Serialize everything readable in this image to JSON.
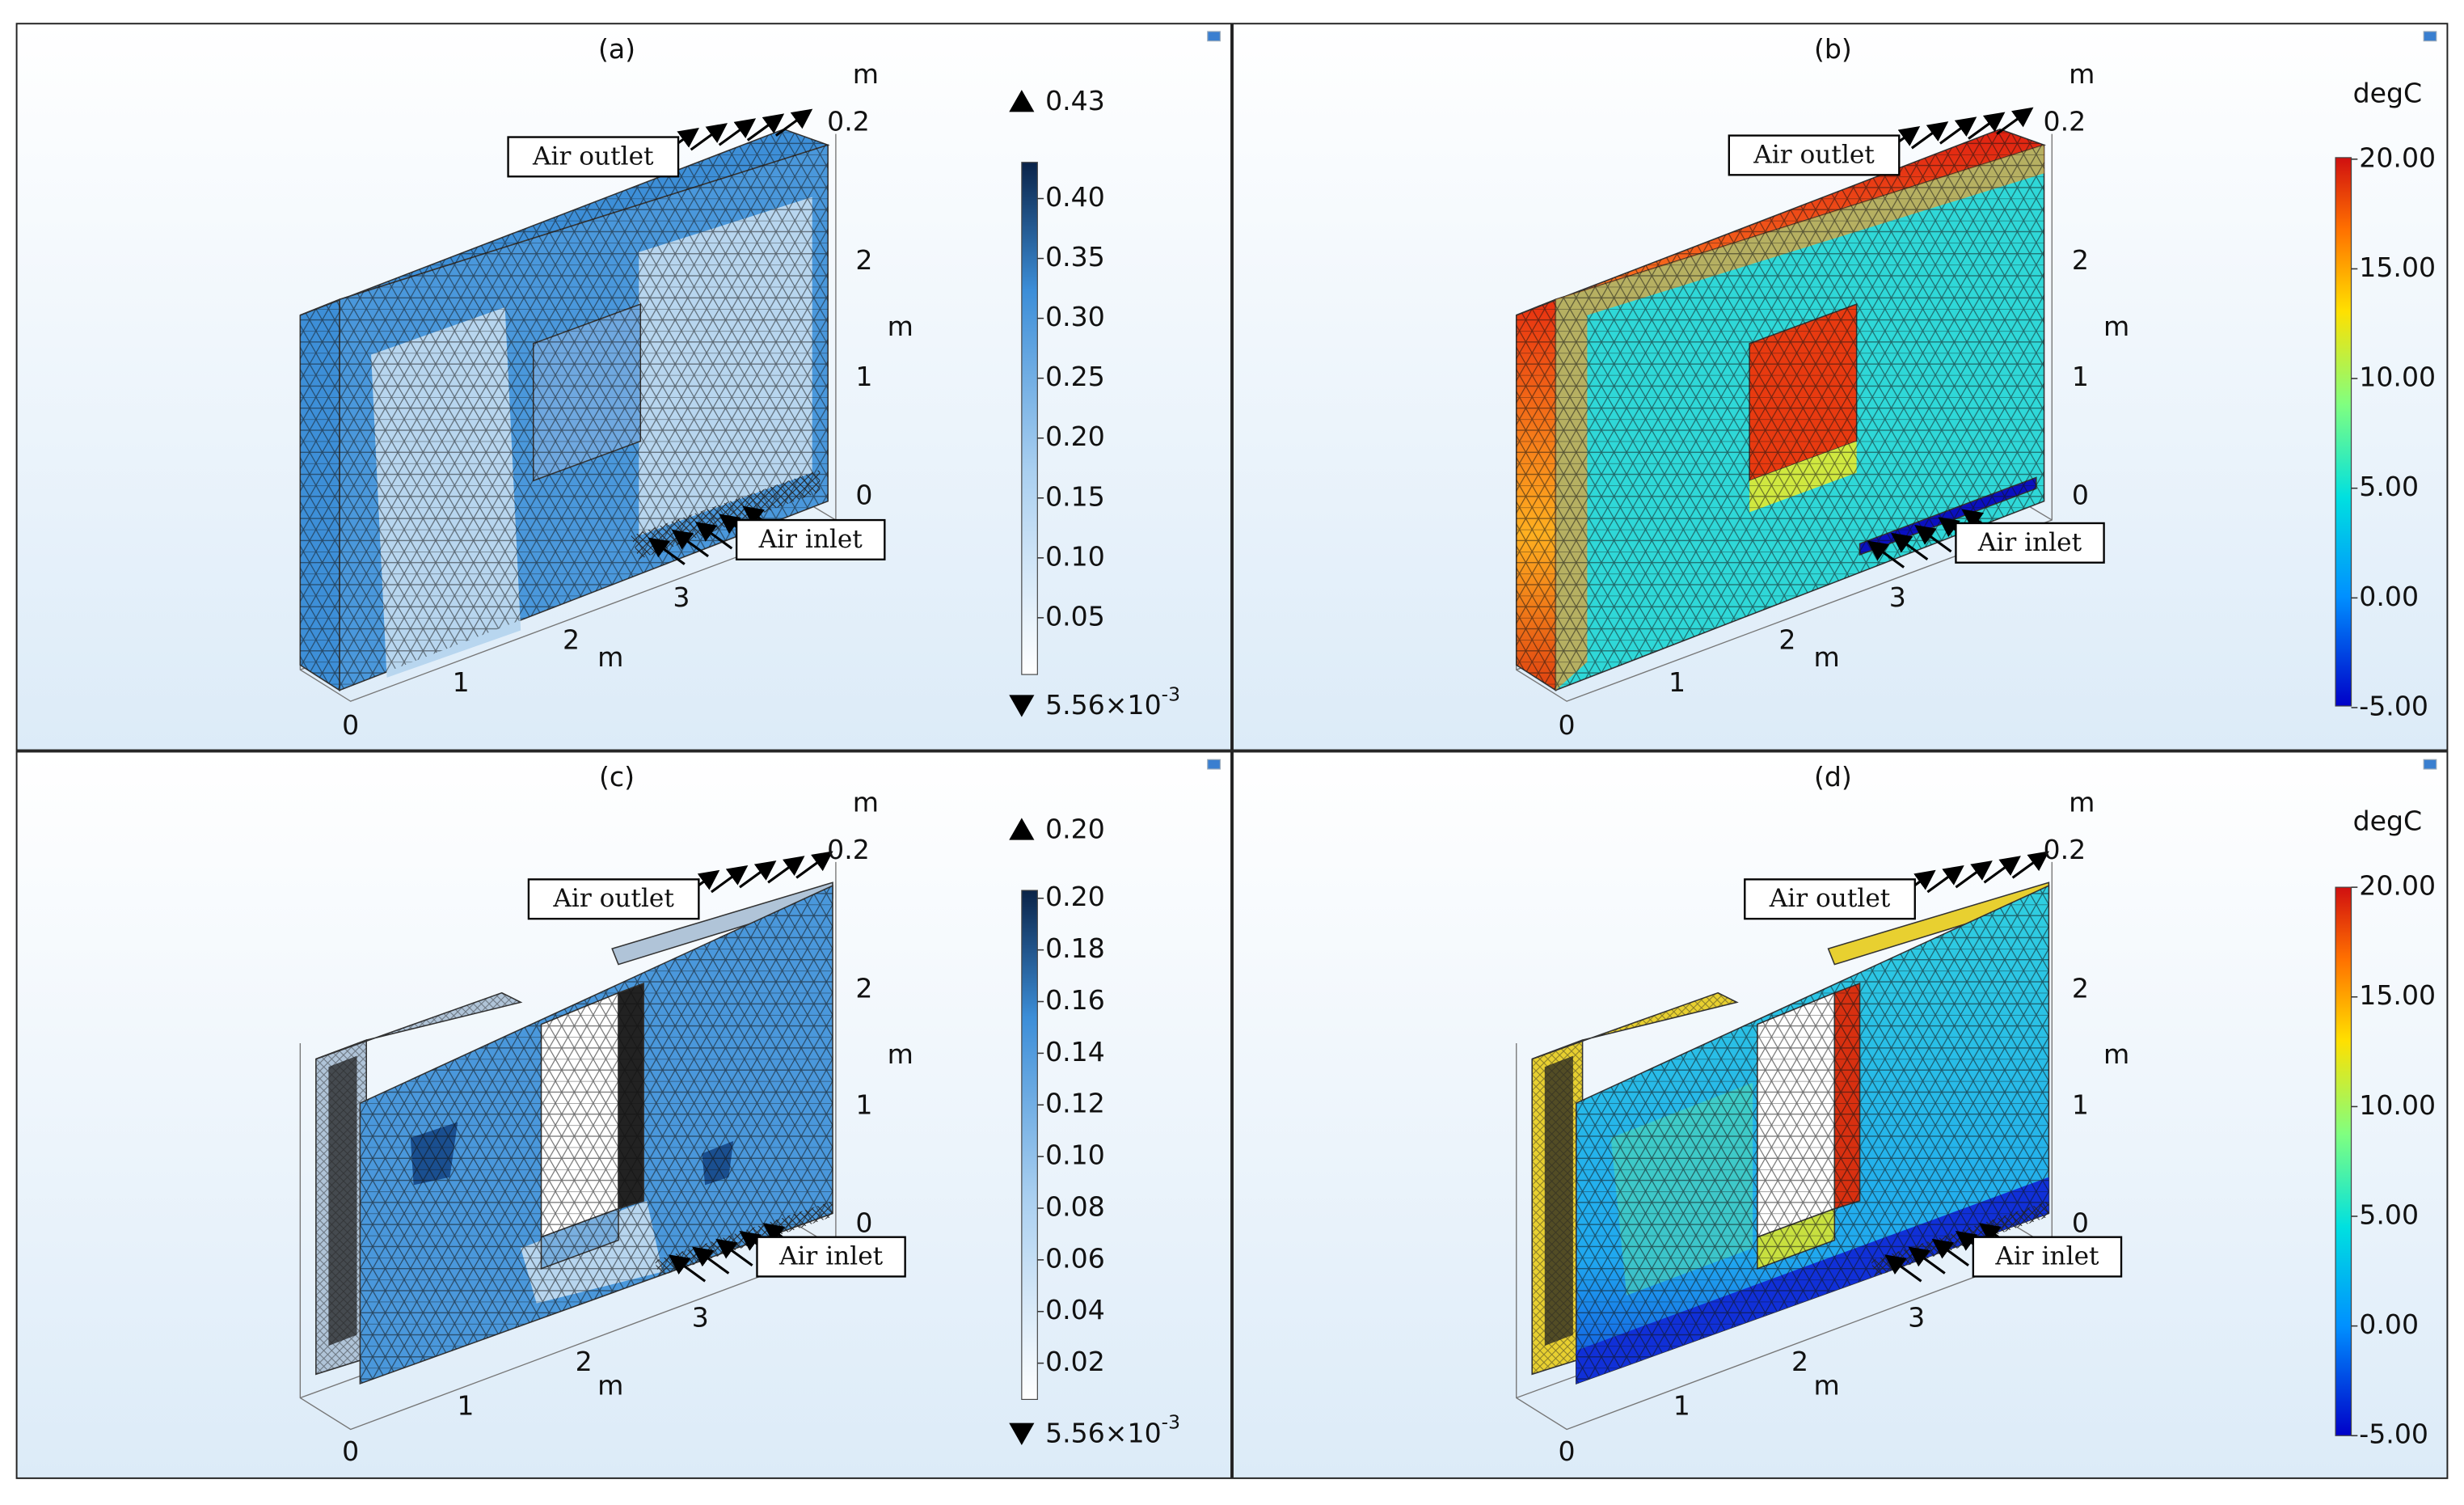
{
  "panels": [
    {
      "label": "(a)",
      "outlet": "Air outlet",
      "inlet": "Air inlet",
      "axis_labels": [
        "m",
        "m",
        "m"
      ],
      "x_ticks": [
        "0",
        "1",
        "2",
        "3"
      ],
      "y_ticks": [
        "0",
        "1",
        "2"
      ],
      "z_ticks": [
        "0",
        "0.2"
      ],
      "colorbar": {
        "max": "0.43",
        "min": {
          "mantissa": "5.56×10",
          "exponent": "-3"
        },
        "ticks": [
          "0.40",
          "0.35",
          "0.30",
          "0.25",
          "0.20",
          "0.15",
          "0.10",
          "0.05"
        ]
      }
    },
    {
      "label": "(b)",
      "outlet": "Air outlet",
      "inlet": "Air inlet",
      "axis_labels": [
        "m",
        "m",
        "m"
      ],
      "x_ticks": [
        "0",
        "1",
        "2",
        "3"
      ],
      "y_ticks": [
        "0",
        "1",
        "2"
      ],
      "z_ticks": [
        "0",
        "0.2"
      ],
      "colorbar": {
        "unit": "degC",
        "ticks": [
          "20.00",
          "15.00",
          "10.00",
          "5.00",
          "0.00",
          "-5.00"
        ]
      }
    },
    {
      "label": "(c)",
      "outlet": "Air outlet",
      "inlet": "Air inlet",
      "axis_labels": [
        "m",
        "m",
        "m"
      ],
      "x_ticks": [
        "0",
        "1",
        "2",
        "3"
      ],
      "y_ticks": [
        "0",
        "1",
        "2"
      ],
      "z_ticks": [
        "0",
        "0.2"
      ],
      "colorbar": {
        "max": "0.20",
        "min": {
          "mantissa": "5.56×10",
          "exponent": "-3"
        },
        "ticks": [
          "0.20",
          "0.18",
          "0.16",
          "0.14",
          "0.12",
          "0.10",
          "0.08",
          "0.06",
          "0.04",
          "0.02"
        ]
      }
    },
    {
      "label": "(d)",
      "outlet": "Air outlet",
      "inlet": "Air inlet",
      "axis_labels": [
        "m",
        "m",
        "m"
      ],
      "x_ticks": [
        "0",
        "1",
        "2",
        "3"
      ],
      "y_ticks": [
        "0",
        "1",
        "2"
      ],
      "z_ticks": [
        "0",
        "0.2"
      ],
      "colorbar": {
        "unit": "degC",
        "ticks": [
          "20.00",
          "15.00",
          "10.00",
          "5.00",
          "0.00",
          "-5.00"
        ]
      }
    }
  ]
}
